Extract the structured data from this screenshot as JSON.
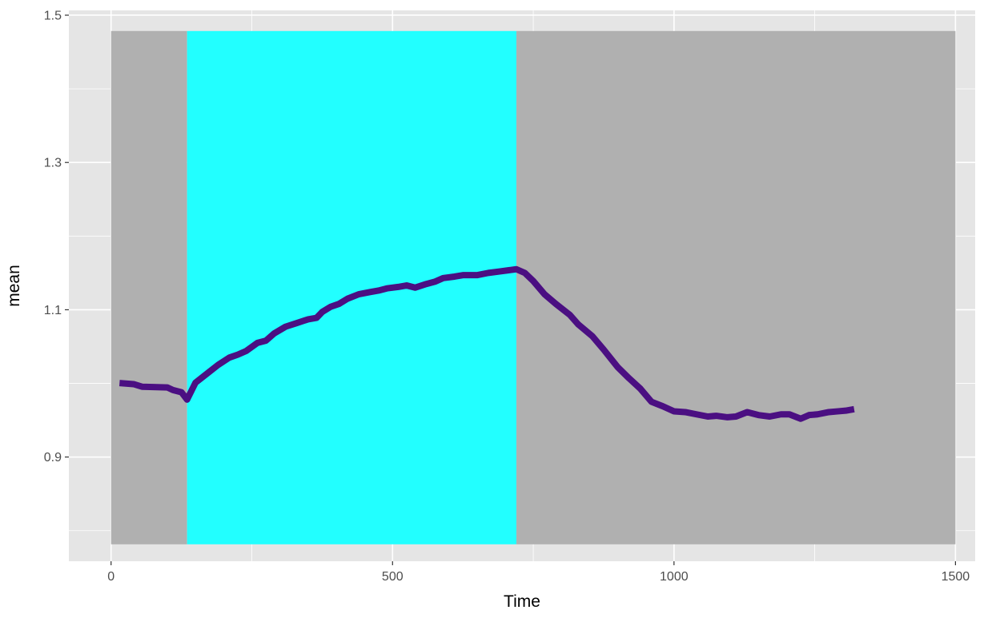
{
  "chart_data": {
    "type": "line",
    "title": "",
    "xlabel": "Time",
    "ylabel": "mean",
    "xlim": [
      -75,
      1535
    ],
    "ylim": [
      0.7585,
      1.5065
    ],
    "x_ticks": [
      0,
      500,
      1000,
      1500
    ],
    "x_tick_labels": [
      "0",
      "500",
      "1000",
      "1500"
    ],
    "y_ticks": [
      0.9,
      1.1,
      1.3,
      1.5
    ],
    "y_tick_labels": [
      "0.9",
      "1.1",
      "1.3",
      "1.5"
    ],
    "grid": true,
    "legend": "none",
    "regions": [
      {
        "x": [
          0,
          135
        ],
        "y": [
          0.7815,
          1.4785
        ],
        "color": "#b0b0b0"
      },
      {
        "x": [
          135,
          720
        ],
        "y": [
          0.7815,
          1.4785
        ],
        "color": "#22ffff"
      },
      {
        "x": [
          720,
          1500
        ],
        "y": [
          0.7815,
          1.4785
        ],
        "color": "#b0b0b0"
      }
    ],
    "series": [
      {
        "color": "#4b0f82",
        "x": [
          15,
          40,
          55,
          75,
          100,
          110,
          125,
          135,
          150,
          170,
          190,
          210,
          225,
          240,
          260,
          275,
          290,
          310,
          330,
          350,
          365,
          375,
          390,
          405,
          420,
          440,
          460,
          475,
          490,
          510,
          525,
          540,
          560,
          575,
          590,
          610,
          625,
          650,
          670,
          690,
          710,
          720,
          735,
          750,
          770,
          790,
          815,
          830,
          855,
          875,
          900,
          920,
          940,
          960,
          980,
          1000,
          1020,
          1040,
          1060,
          1075,
          1095,
          1110,
          1130,
          1150,
          1170,
          1190,
          1205,
          1225,
          1240,
          1255,
          1275,
          1290,
          1305,
          1320
        ],
        "y": [
          1.0005,
          0.999,
          0.9955,
          0.995,
          0.9945,
          0.991,
          0.988,
          0.978,
          1.001,
          1.013,
          1.025,
          1.035,
          1.039,
          1.044,
          1.055,
          1.058,
          1.068,
          1.077,
          1.082,
          1.087,
          1.089,
          1.097,
          1.104,
          1.108,
          1.115,
          1.121,
          1.124,
          1.126,
          1.129,
          1.131,
          1.133,
          1.13,
          1.135,
          1.138,
          1.143,
          1.145,
          1.147,
          1.147,
          1.15,
          1.152,
          1.154,
          1.155,
          1.15,
          1.139,
          1.121,
          1.108,
          1.093,
          1.08,
          1.064,
          1.046,
          1.022,
          1.007,
          0.993,
          0.975,
          0.969,
          0.962,
          0.961,
          0.958,
          0.955,
          0.956,
          0.954,
          0.955,
          0.961,
          0.957,
          0.955,
          0.958,
          0.958,
          0.952,
          0.957,
          0.958,
          0.961,
          0.962,
          0.963,
          0.965
        ]
      }
    ]
  }
}
